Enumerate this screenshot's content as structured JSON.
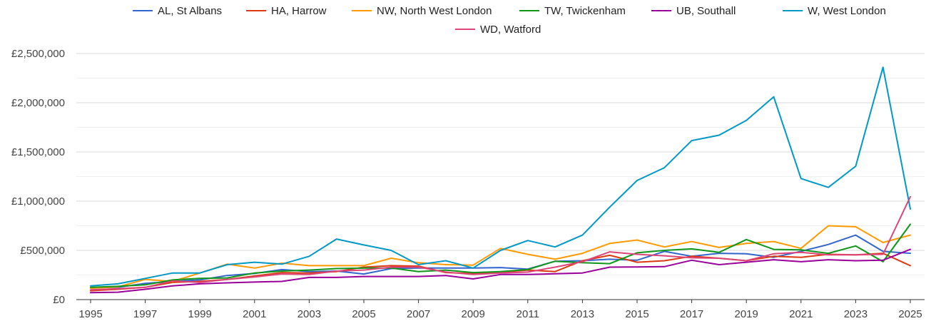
{
  "chart_data": {
    "type": "line",
    "title": "",
    "xlabel": "",
    "ylabel": "",
    "x": [
      1995,
      1996,
      1997,
      1998,
      1999,
      2000,
      2001,
      2002,
      2003,
      2004,
      2005,
      2006,
      2007,
      2008,
      2009,
      2010,
      2011,
      2012,
      2013,
      2014,
      2015,
      2016,
      2017,
      2018,
      2019,
      2020,
      2021,
      2022,
      2023,
      2024,
      2025
    ],
    "x_ticks": [
      "1995",
      "1997",
      "1999",
      "2001",
      "2003",
      "2005",
      "2007",
      "2009",
      "2011",
      "2013",
      "2015",
      "2017",
      "2019",
      "2021",
      "2023",
      "2025"
    ],
    "y_ticks": [
      "£0",
      "£500,000",
      "£1,000,000",
      "£1,500,000",
      "£2,000,000",
      "£2,500,000"
    ],
    "ylim": [
      0,
      2500000
    ],
    "grid": true,
    "legend_position": "top",
    "series": [
      {
        "name": "AL, St Albans",
        "color": "#3366cc",
        "values": [
          120000,
          125000,
          165000,
          185000,
          200000,
          245000,
          265000,
          305000,
          285000,
          290000,
          260000,
          315000,
          320000,
          320000,
          320000,
          325000,
          310000,
          390000,
          395000,
          410000,
          400000,
          490000,
          440000,
          470000,
          465000,
          430000,
          490000,
          560000,
          655000,
          490000,
          470000
        ]
      },
      {
        "name": "HA, Harrow",
        "color": "#dc3912",
        "values": [
          90000,
          105000,
          125000,
          175000,
          185000,
          205000,
          240000,
          275000,
          270000,
          285000,
          330000,
          345000,
          340000,
          275000,
          265000,
          280000,
          300000,
          285000,
          395000,
          450000,
          380000,
          395000,
          440000,
          420000,
          395000,
          440000,
          430000,
          460000,
          455000,
          470000,
          345000
        ]
      },
      {
        "name": "NW, North West London",
        "color": "#ff9900",
        "values": [
          115000,
          130000,
          205000,
          185000,
          270000,
          360000,
          320000,
          370000,
          345000,
          345000,
          345000,
          420000,
          375000,
          355000,
          350000,
          520000,
          460000,
          410000,
          470000,
          570000,
          605000,
          535000,
          590000,
          530000,
          570000,
          590000,
          520000,
          750000,
          740000,
          580000,
          655000
        ]
      },
      {
        "name": "TW, Twickenham",
        "color": "#109618",
        "values": [
          125000,
          135000,
          150000,
          200000,
          215000,
          220000,
          270000,
          290000,
          300000,
          315000,
          320000,
          320000,
          285000,
          300000,
          275000,
          285000,
          305000,
          390000,
          375000,
          365000,
          475000,
          500000,
          515000,
          480000,
          610000,
          510000,
          505000,
          470000,
          545000,
          385000,
          765000
        ]
      },
      {
        "name": "UB, Southall",
        "color": "#990099",
        "values": [
          70000,
          75000,
          105000,
          140000,
          160000,
          170000,
          178000,
          185000,
          225000,
          225000,
          235000,
          235000,
          235000,
          245000,
          210000,
          255000,
          255000,
          262000,
          270000,
          330000,
          332000,
          335000,
          400000,
          355000,
          380000,
          405000,
          385000,
          405000,
          395000,
          400000,
          510000
        ]
      },
      {
        "name": "W, West London",
        "color": "#0099c6",
        "values": [
          140000,
          160000,
          215000,
          270000,
          270000,
          355000,
          380000,
          360000,
          440000,
          615000,
          555000,
          500000,
          355000,
          395000,
          320000,
          500000,
          600000,
          535000,
          655000,
          940000,
          1210000,
          1340000,
          1615000,
          1670000,
          1820000,
          2060000,
          1230000,
          1140000,
          1355000,
          2360000,
          920000
        ]
      },
      {
        "name": "WD, Watford",
        "color": "#dd4477",
        "values": [
          100000,
          110000,
          125000,
          190000,
          175000,
          205000,
          230000,
          260000,
          255000,
          290000,
          300000,
          330000,
          330000,
          280000,
          255000,
          270000,
          280000,
          330000,
          385000,
          485000,
          460000,
          445000,
          425000,
          420000,
          395000,
          465000,
          480000,
          455000,
          455000,
          460000,
          1045000
        ]
      }
    ]
  }
}
